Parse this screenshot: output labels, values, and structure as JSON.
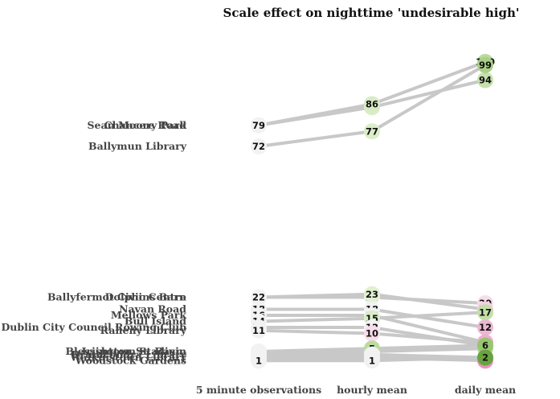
{
  "chart_data": {
    "type": "slope",
    "title": "Scale effect on nighttime 'undesirable high'",
    "x": [
      "5 minute observations",
      "hourly mean",
      "daily mean"
    ],
    "series": [
      {
        "name": "Chancery Park",
        "values": [
          79,
          85,
          94
        ]
      },
      {
        "name": "Sean Moore Road",
        "values": [
          79,
          86,
          100
        ]
      },
      {
        "name": "Ballymun Library",
        "values": [
          72,
          77,
          99
        ]
      },
      {
        "name": "Ballyfermot Civic Centre",
        "values": [
          22,
          22,
          20
        ]
      },
      {
        "name": "Dolphins Barn",
        "values": [
          22,
          23,
          18
        ]
      },
      {
        "name": "Navan Road",
        "values": [
          18,
          18,
          12
        ]
      },
      {
        "name": "Mellows Park",
        "values": [
          16,
          16,
          7
        ]
      },
      {
        "name": "Bull Island",
        "values": [
          14,
          15,
          17
        ]
      },
      {
        "name": "Dublin City Council Rowing Club",
        "values": [
          12,
          12,
          6
        ]
      },
      {
        "name": "Raheny Library",
        "values": [
          11,
          10,
          7
        ]
      },
      {
        "name": "Irishtown Stadium",
        "values": [
          4,
          4,
          5
        ]
      },
      {
        "name": "Blessington St. Basin",
        "values": [
          4,
          5,
          6
        ]
      },
      {
        "name": "Drumcondra Library",
        "values": [
          3,
          3,
          2
        ]
      },
      {
        "name": "Walkinstown Library",
        "values": [
          2,
          2,
          1
        ]
      },
      {
        "name": "Woodstock Gardens",
        "values": [
          1,
          1,
          2
        ]
      }
    ],
    "line_color": "#c8c8c8",
    "color_increase": "#7ab648",
    "color_decrease": "#d6649f",
    "color_neutral": "#f2f2f2",
    "legend": "none",
    "grid": false
  }
}
